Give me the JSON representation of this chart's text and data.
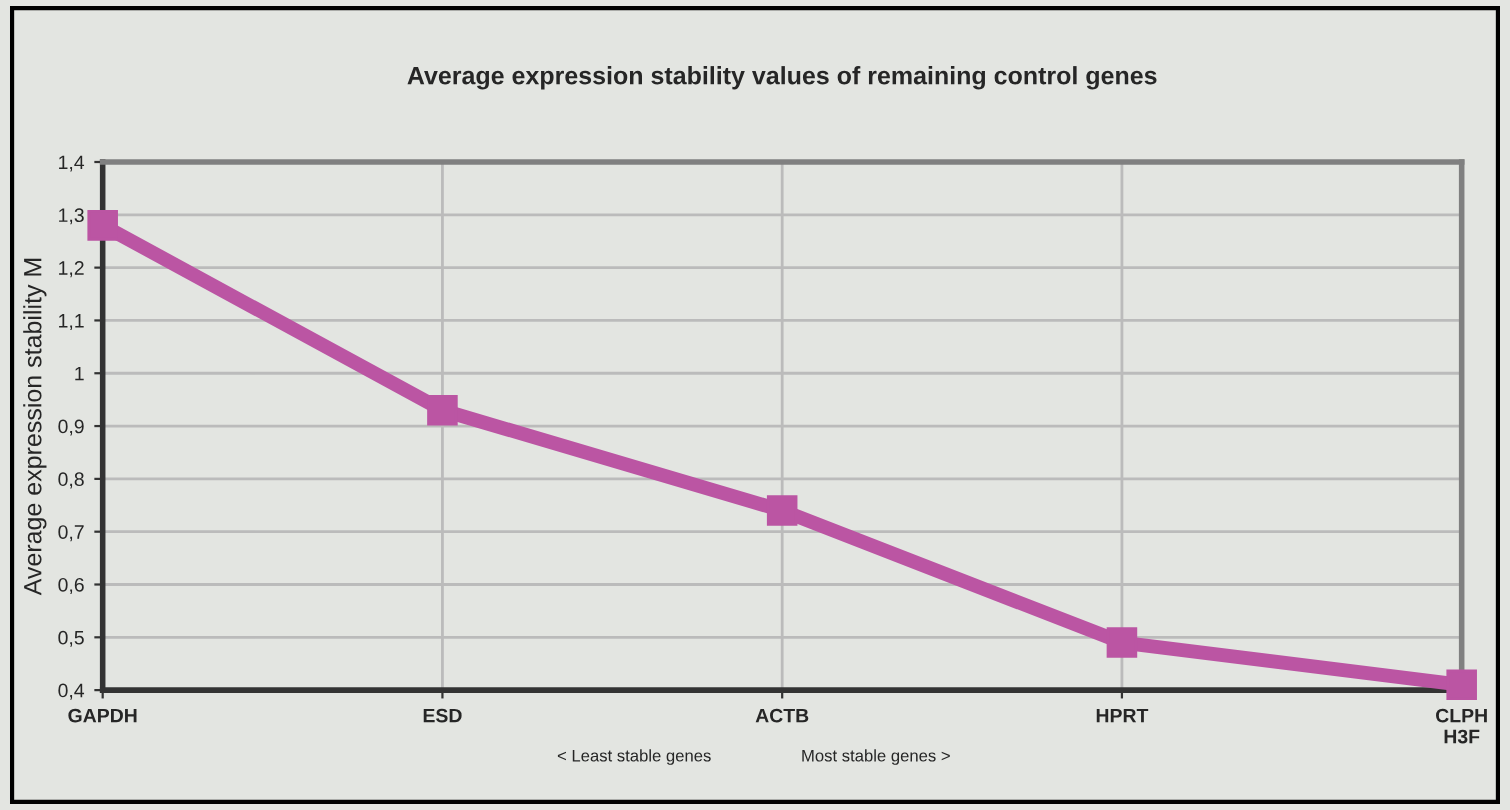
{
  "chart_data": {
    "type": "line",
    "title": "Average expression stability values of remaining control genes",
    "ylabel": "Average expression stability M",
    "categories": [
      "GAPDH",
      "ESD",
      "ACTB",
      "HPRT",
      "CLPH\nH3F"
    ],
    "series": [
      {
        "color": "#bb55a3",
        "values": [
          1.28,
          0.93,
          0.74,
          0.49,
          0.41
        ]
      }
    ],
    "ylim": [
      0.4,
      1.4
    ],
    "yticks": [
      {
        "value": 0.4,
        "label": "0,4"
      },
      {
        "value": 0.5,
        "label": "0,5"
      },
      {
        "value": 0.6,
        "label": "0,6"
      },
      {
        "value": 0.7,
        "label": "0,7"
      },
      {
        "value": 0.8,
        "label": "0,8"
      },
      {
        "value": 0.9,
        "label": "0,9"
      },
      1,
      {
        "value": 1.1,
        "label": "1,1"
      },
      {
        "value": 1.2,
        "label": "1,2"
      },
      {
        "value": 1.3,
        "label": "1,3"
      },
      {
        "value": 1.4,
        "label": "1,4"
      }
    ],
    "annotations": [
      "< Least stable genes",
      "Most stable genes >"
    ],
    "grid": true,
    "marker": "square",
    "line_style": "solid",
    "legend": false
  }
}
